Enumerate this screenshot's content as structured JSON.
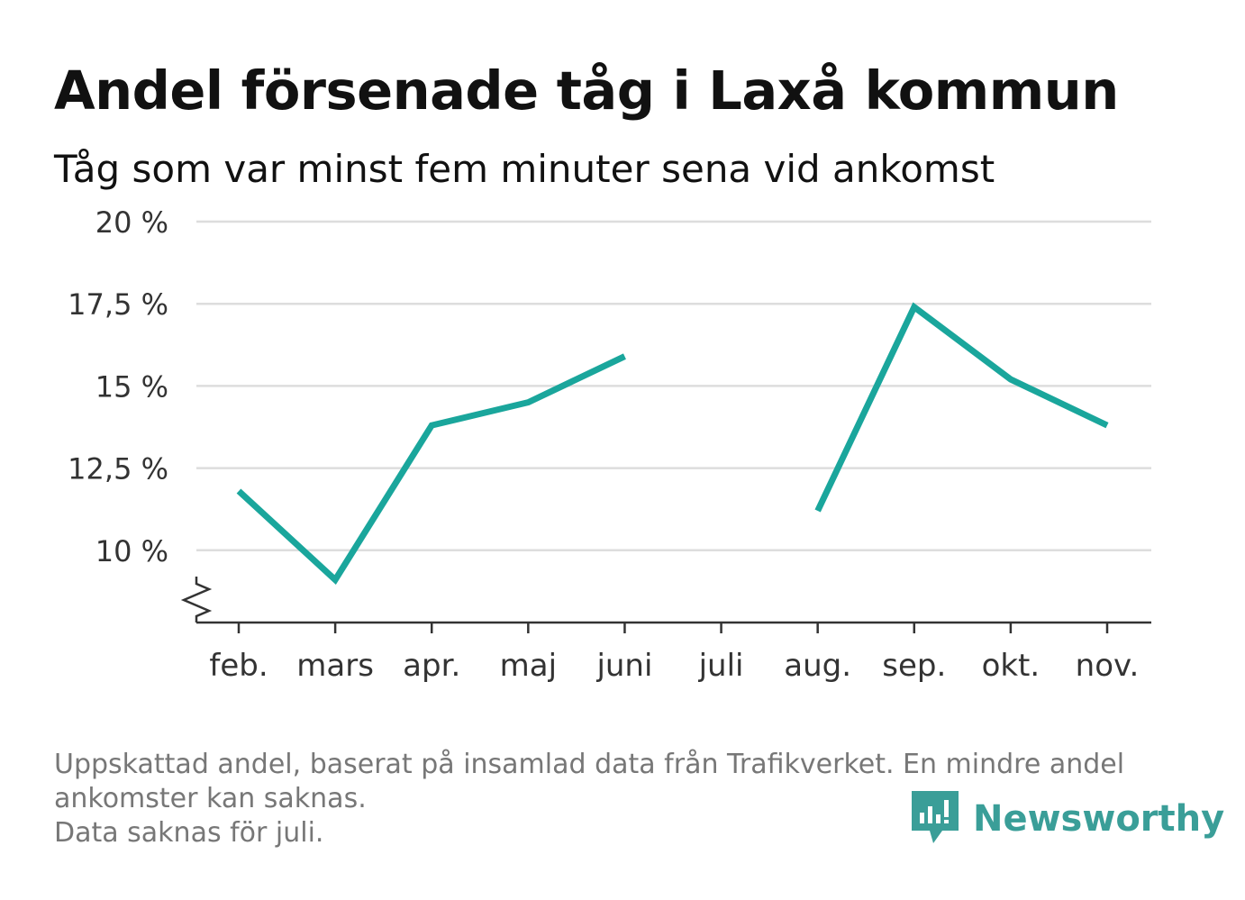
{
  "title": "Andel försenade tåg i Laxå kommun",
  "subtitle": "Tåg som var minst fem minuter sena vid ankomst",
  "footnote": {
    "line1": "Uppskattad andel, baserat på insamlad data från Trafikverket. En mindre andel",
    "line2": "ankomster kan saknas.",
    "line3": "Data saknas för juli."
  },
  "brand": {
    "name": "Newsworthy",
    "icon": "newsworthy-logo-icon",
    "color": "#3a9e98"
  },
  "chart_data": {
    "type": "line",
    "categories": [
      "feb.",
      "mars",
      "apr.",
      "maj",
      "juni",
      "juli",
      "aug.",
      "sep.",
      "okt.",
      "nov."
    ],
    "series": [
      {
        "values": [
          11.8,
          9.1,
          13.8,
          14.5,
          15.9,
          null,
          11.2,
          17.4,
          15.2,
          13.8
        ],
        "color": "#1aa69c"
      }
    ],
    "y_ticks": [
      10,
      12.5,
      15,
      17.5,
      20
    ],
    "y_tick_labels": [
      "10 %",
      "12,5 %",
      "15 %",
      "17,5 %",
      "20 %"
    ],
    "ylim": [
      7.8,
      20
    ],
    "axis_break": true,
    "grid": true,
    "xlabel": "",
    "ylabel": ""
  }
}
